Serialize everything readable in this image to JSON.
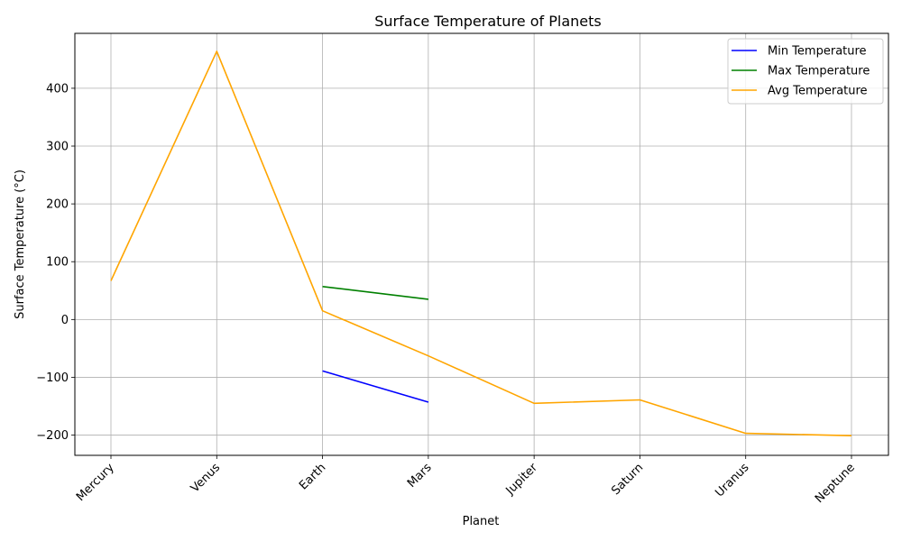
{
  "chart_data": {
    "type": "line",
    "title": "Surface Temperature of Planets",
    "xlabel": "Planet",
    "ylabel": "Surface Temperature (°C)",
    "categories": [
      "Mercury",
      "Venus",
      "Earth",
      "Mars",
      "Jupiter",
      "Saturn",
      "Uranus",
      "Neptune"
    ],
    "ylim": [
      -235,
      495
    ],
    "yticks": [
      -200,
      -100,
      0,
      100,
      200,
      300,
      400
    ],
    "ytick_labels": [
      "−200",
      "−100",
      "0",
      "100",
      "200",
      "300",
      "400"
    ],
    "grid": true,
    "legend_position": "top-right",
    "series": [
      {
        "name": "Min Temperature",
        "color": "#0000ff",
        "values": [
          null,
          null,
          -89,
          -143,
          null,
          null,
          null,
          null
        ]
      },
      {
        "name": "Max Temperature",
        "color": "#008000",
        "values": [
          null,
          null,
          57,
          35,
          null,
          null,
          null,
          null
        ]
      },
      {
        "name": "Avg Temperature",
        "color": "#ffa500",
        "values": [
          67,
          464,
          15,
          -63,
          -145,
          -139,
          -197,
          -201
        ]
      }
    ]
  }
}
